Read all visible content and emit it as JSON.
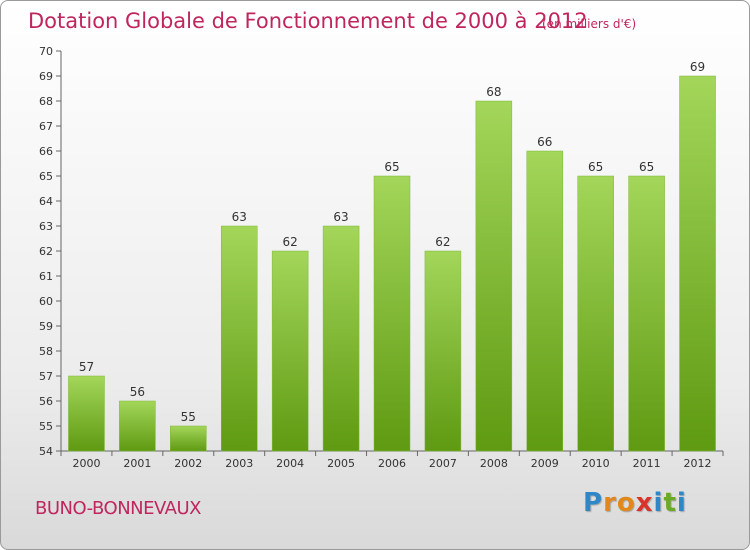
{
  "title": "Dotation Globale de Fonctionnement de 2000 à 2012",
  "unit_note": "(en milliers d'€)",
  "commune": "BUNO-BONNEVAUX",
  "logo": {
    "letters": [
      "P",
      "r",
      "o",
      "x",
      "i",
      "t",
      "i"
    ],
    "colors": [
      "#2f87c8",
      "#e2871b",
      "#e2871b",
      "#d9342b",
      "#2f87c8",
      "#6aaa24",
      "#2f87c8"
    ]
  },
  "colors": {
    "bar_top": "#a3d65a",
    "bar_bottom": "#5f9a12",
    "axis_text": "#333333",
    "title": "#c0265e"
  },
  "chart_data": {
    "type": "bar",
    "categories": [
      "2000",
      "2001",
      "2002",
      "2003",
      "2004",
      "2005",
      "2006",
      "2007",
      "2008",
      "2009",
      "2010",
      "2011",
      "2012"
    ],
    "values": [
      57,
      56,
      55,
      63,
      62,
      63,
      65,
      62,
      68,
      66,
      65,
      65,
      69
    ],
    "ylim": [
      54,
      70
    ],
    "yticks": [
      54,
      55,
      56,
      57,
      58,
      59,
      60,
      61,
      62,
      63,
      64,
      65,
      66,
      67,
      68,
      69,
      70
    ],
    "grid": false,
    "legend": "none"
  }
}
